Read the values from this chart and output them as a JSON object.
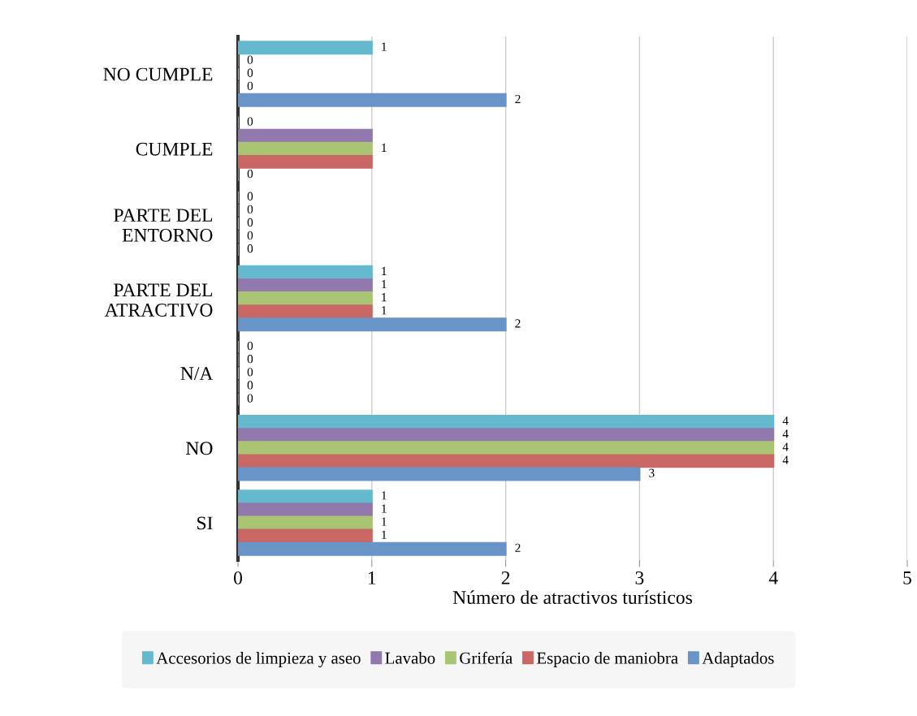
{
  "chart_data": {
    "type": "bar",
    "orientation": "horizontal",
    "xlabel": "Número de atractivos turísticos",
    "categories": [
      "NO CUMPLE",
      "CUMPLE",
      "PARTE DEL\nENTORNO",
      "PARTE DEL\nATRACTIVO",
      "N/A",
      "NO",
      "SI"
    ],
    "series": [
      {
        "name": "Accesorios de limpieza y aseo",
        "color": "#64b9cf",
        "values": [
          1,
          0,
          0,
          1,
          0,
          4,
          1
        ],
        "value_labels": [
          "1",
          "0",
          "0",
          "1",
          "0",
          "4",
          "1"
        ]
      },
      {
        "name": "Lavabo",
        "color": "#9179ae",
        "values": [
          0,
          1,
          0,
          1,
          0,
          4,
          1
        ],
        "value_labels": [
          "0",
          null,
          "0",
          "1",
          "0",
          "4",
          "1"
        ]
      },
      {
        "name": "Grifería",
        "color": "#a9c573",
        "values": [
          0,
          1,
          0,
          1,
          0,
          4,
          1
        ],
        "value_labels": [
          "0",
          "1",
          "0",
          "1",
          "0",
          "4",
          "1"
        ]
      },
      {
        "name": "Espacio de maniobra",
        "color": "#c96765",
        "values": [
          0,
          1,
          0,
          1,
          0,
          4,
          1
        ],
        "value_labels": [
          "0",
          null,
          "0",
          "1",
          "0",
          "4",
          "1"
        ]
      },
      {
        "name": "Adaptados",
        "color": "#6894c8",
        "values": [
          2,
          0,
          0,
          2,
          0,
          3,
          2
        ],
        "value_labels": [
          "2",
          "0",
          "0",
          "2",
          "0",
          "3",
          "2"
        ]
      }
    ],
    "xlim": [
      0,
      5
    ],
    "xticks": [
      0,
      1,
      2,
      3,
      4,
      5
    ],
    "grid": "x",
    "legend": "bottom"
  }
}
